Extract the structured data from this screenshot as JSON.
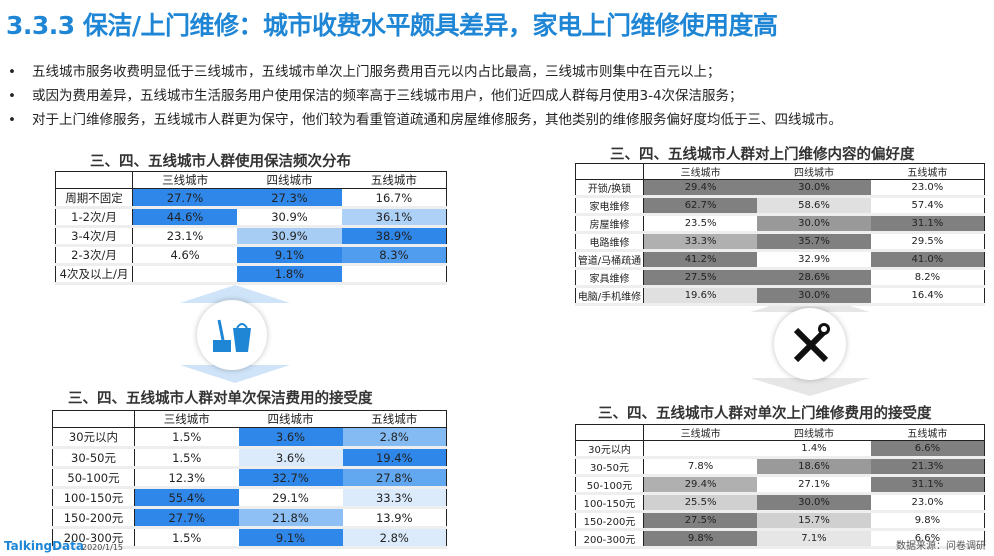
{
  "title": "3.3.3 保洁/上门维修：城市收费水平颇具差异，家电上门维修使用度高",
  "bullets": [
    "五线城市服务收费明显低于三线城市，五线城市单次上门服务费用百元以内占比最高，三线城市则集中在百元以上；",
    "或因为费用差异，五线城市生活服务用户使用保洁的频率高于三线城市用户，他们近四成人群每月使用3-4次保洁服务；",
    "对于上门维修服务，五线城市人群更为保守，他们较为看重管道疏通和房屋维修服务，其他类别的维修服务偏好度均低于三、四线城市。"
  ],
  "bullet_marker": "•",
  "tables": [
    {
      "title": "三、四、五线城市人群使用保洁频次分布",
      "headers": [
        "三线城市",
        "四线城市",
        "五线城市"
      ],
      "rows": [
        {
          "label": "周期不固定",
          "values": [
            "27.7%",
            "27.3%",
            "16.7%"
          ],
          "colors": [
            "#2f87ea",
            "#2f87ea",
            "#ffffff"
          ]
        },
        {
          "label": "1-2次/月",
          "values": [
            "44.6%",
            "30.9%",
            "36.1%"
          ],
          "colors": [
            "#2f87ea",
            "#ffffff",
            "#aed2f7"
          ]
        },
        {
          "label": "3-4次/月",
          "values": [
            "23.1%",
            "30.9%",
            "38.9%"
          ],
          "colors": [
            "#ffffff",
            "#a8cdf4",
            "#2f87ea"
          ]
        },
        {
          "label": "2-3次/月",
          "values": [
            "4.6%",
            "9.1%",
            "8.3%"
          ],
          "colors": [
            "#ffffff",
            "#2f87ea",
            "#509cef"
          ]
        },
        {
          "label": "4次及以上/月",
          "values": [
            "",
            "1.8%",
            ""
          ],
          "colors": [
            "#ffffff",
            "#2f87ea",
            "#ffffff"
          ]
        }
      ]
    },
    {
      "title": "三、四、五线城市人群对上门维修内容的偏好度",
      "headers": [
        "三线城市",
        "四线城市",
        "五线城市"
      ],
      "rows": [
        {
          "label": "开锁/换锁",
          "values": [
            "29.4%",
            "30.0%",
            "23.0%"
          ],
          "colors": [
            "#808080",
            "#808080",
            "#ffffff"
          ]
        },
        {
          "label": "家电维修",
          "values": [
            "62.7%",
            "58.6%",
            "57.4%"
          ],
          "colors": [
            "#808080",
            "#e0e0e0",
            "#ffffff"
          ]
        },
        {
          "label": "房屋维修",
          "values": [
            "23.5%",
            "30.0%",
            "31.1%"
          ],
          "colors": [
            "#ffffff",
            "#999999",
            "#808080"
          ]
        },
        {
          "label": "电路维修",
          "values": [
            "33.3%",
            "35.7%",
            "29.5%"
          ],
          "colors": [
            "#b0b0b0",
            "#808080",
            "#ffffff"
          ]
        },
        {
          "label": "管道/马桶疏通",
          "values": [
            "41.2%",
            "32.9%",
            "41.0%"
          ],
          "colors": [
            "#808080",
            "#ffffff",
            "#808080"
          ]
        },
        {
          "label": "家具维修",
          "values": [
            "27.5%",
            "28.6%",
            "8.2%"
          ],
          "colors": [
            "#808080",
            "#808080",
            "#ffffff"
          ]
        },
        {
          "label": "电脑/手机维修",
          "values": [
            "19.6%",
            "30.0%",
            "16.4%"
          ],
          "colors": [
            "#e0e0e0",
            "#808080",
            "#ffffff"
          ]
        }
      ]
    },
    {
      "title": "三、四、五线城市人群对单次保洁费用的接受度",
      "headers": [
        "三线城市",
        "四线城市",
        "五线城市"
      ],
      "rows": [
        {
          "label": "30元以内",
          "values": [
            "1.5%",
            "3.6%",
            "2.8%"
          ],
          "colors": [
            "#ffffff",
            "#2f87ea",
            "#85bbf3"
          ]
        },
        {
          "label": "30-50元",
          "values": [
            "1.5%",
            "3.6%",
            "19.4%"
          ],
          "colors": [
            "#ffffff",
            "#dcebfb",
            "#2f87ea"
          ]
        },
        {
          "label": "50-100元",
          "values": [
            "12.3%",
            "32.7%",
            "27.8%"
          ],
          "colors": [
            "#ffffff",
            "#2f87ea",
            "#62a8f0"
          ]
        },
        {
          "label": "100-150元",
          "values": [
            "55.4%",
            "29.1%",
            "33.3%"
          ],
          "colors": [
            "#2f87ea",
            "#ffffff",
            "#dcebfb"
          ]
        },
        {
          "label": "150-200元",
          "values": [
            "27.7%",
            "21.8%",
            "13.9%"
          ],
          "colors": [
            "#2f87ea",
            "#8ec0f5",
            "#ffffff"
          ]
        },
        {
          "label": "200-300元",
          "values": [
            "1.5%",
            "9.1%",
            "2.8%"
          ],
          "colors": [
            "#ffffff",
            "#2f87ea",
            "#dcebfb"
          ]
        }
      ]
    },
    {
      "title": "三、四、五线城市人群对单次上门维修费用的接受度",
      "headers": [
        "三线城市",
        "四线城市",
        "五线城市"
      ],
      "rows": [
        {
          "label": "30元以内",
          "values": [
            "",
            "1.4%",
            "6.6%"
          ],
          "colors": [
            "#ffffff",
            "#ffffff",
            "#808080"
          ]
        },
        {
          "label": "30-50元",
          "values": [
            "7.8%",
            "18.6%",
            "21.3%"
          ],
          "colors": [
            "#ffffff",
            "#9a9a9a",
            "#808080"
          ]
        },
        {
          "label": "50-100元",
          "values": [
            "29.4%",
            "27.1%",
            "31.1%"
          ],
          "colors": [
            "#b0b0b0",
            "#ffffff",
            "#808080"
          ]
        },
        {
          "label": "100-150元",
          "values": [
            "25.5%",
            "30.0%",
            "23.0%"
          ],
          "colors": [
            "#d0d0d0",
            "#808080",
            "#ffffff"
          ]
        },
        {
          "label": "150-200元",
          "values": [
            "27.5%",
            "15.7%",
            "9.8%"
          ],
          "colors": [
            "#808080",
            "#d0d0d0",
            "#ffffff"
          ]
        },
        {
          "label": "200-300元",
          "values": [
            "9.8%",
            "7.1%",
            "6.6%"
          ],
          "colors": [
            "#808080",
            "#e6e6e6",
            "#ffffff"
          ]
        }
      ]
    }
  ],
  "footer": {
    "logo": "TalkingData",
    "date": "2020/1/15",
    "source": "数据来源：问卷调研"
  }
}
